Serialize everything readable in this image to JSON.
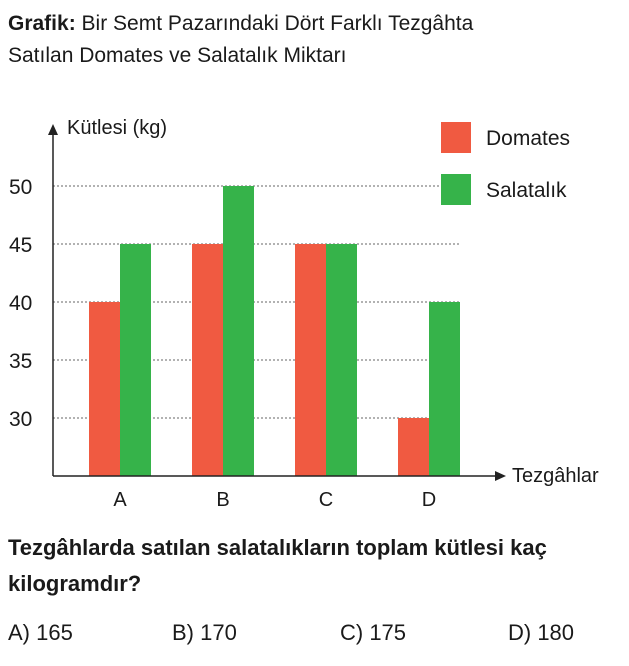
{
  "header": {
    "prefix": "Grafik:",
    "line1": "Bir Semt Pazarındaki Dört Farklı Tezgâhta",
    "line2": "Satılan Domates ve Salatalık Miktarı"
  },
  "chart_data": {
    "type": "bar",
    "ylabel": "Kütlesi (kg)",
    "xlabel": "Tezgâhlar",
    "categories": [
      "A",
      "B",
      "C",
      "D"
    ],
    "yticks": [
      30,
      35,
      40,
      45,
      50
    ],
    "ylim": [
      25,
      55
    ],
    "grid": "dotted horizontal at ticks",
    "legend_position": "top-right",
    "series": [
      {
        "name": "Domates",
        "color": "#f05a41",
        "values": [
          40,
          45,
          45,
          30
        ]
      },
      {
        "name": "Salatalık",
        "color": "#36b34a",
        "values": [
          45,
          50,
          45,
          40
        ]
      }
    ]
  },
  "question": {
    "text": "Tezgâhlarda satılan salatalıkların toplam kütlesi kaç kilogramdır?",
    "options": [
      "A) 165",
      "B) 170",
      "C) 175",
      "D) 180"
    ]
  }
}
